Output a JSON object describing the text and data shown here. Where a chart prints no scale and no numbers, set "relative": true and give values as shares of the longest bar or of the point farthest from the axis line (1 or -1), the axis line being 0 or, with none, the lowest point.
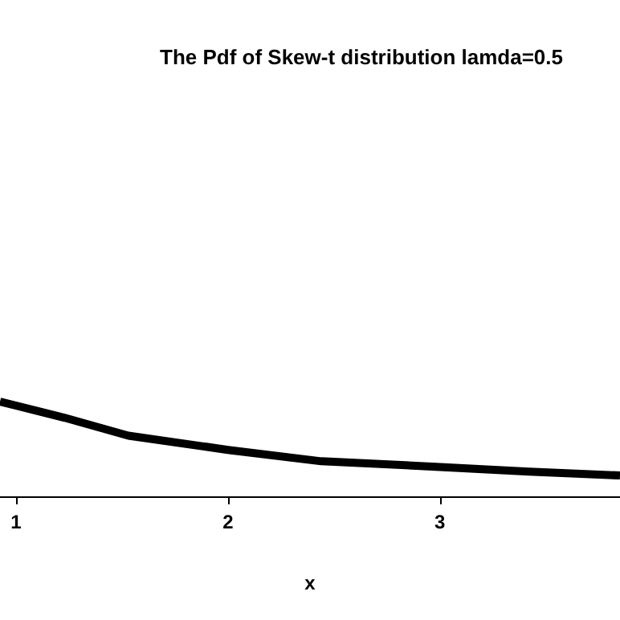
{
  "chart_data": {
    "type": "line",
    "title": "The Pdf of Skew-t distribution lamda=0.5",
    "xlabel": "x",
    "relative": true,
    "x": [
      0.924,
      1.227,
      1.53,
      2.0,
      2.44,
      3.0,
      3.42,
      3.85
    ],
    "values": [
      1,
      0.83,
      0.64,
      0.49,
      0.37,
      0.31,
      0.26,
      0.22
    ],
    "color": "#000000",
    "xlim": [
      0.924,
      3.85
    ],
    "xticks": [
      1,
      2,
      3
    ],
    "grid": false,
    "marker": "none",
    "line_style": "solid"
  }
}
